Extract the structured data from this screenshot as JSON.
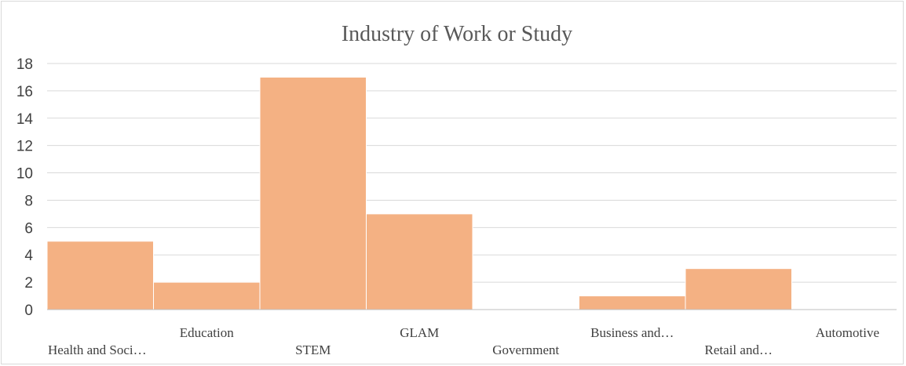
{
  "chart_data": {
    "type": "bar",
    "title": "Industry of Work or Study",
    "xlabel": "",
    "ylabel": "",
    "categories": [
      "Health and Soci…",
      "Education",
      "STEM",
      "GLAM",
      "Government",
      "Business and…",
      "Retail and…",
      "Automotive"
    ],
    "values": [
      5,
      2,
      17,
      7,
      0,
      1,
      3,
      0
    ],
    "ylim": [
      0,
      18
    ],
    "yticks": [
      0,
      2,
      4,
      6,
      8,
      10,
      12,
      14,
      16,
      18
    ],
    "grid": true,
    "legend": "none",
    "bar_color": "#f4b183"
  }
}
